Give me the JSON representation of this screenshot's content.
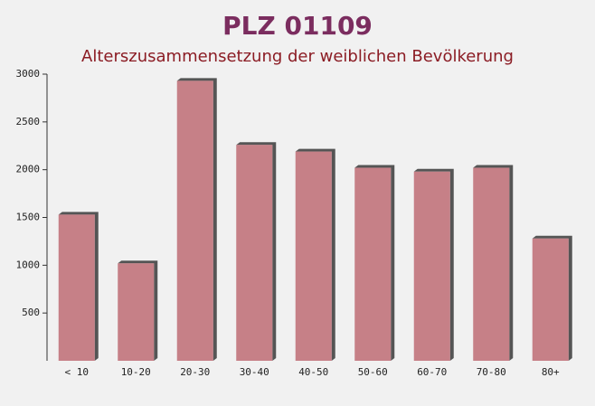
{
  "chart_data": {
    "type": "bar",
    "title": "PLZ 01109",
    "subtitle": "Alterszusammensetzung der weiblichen Bevölkerung",
    "categories": [
      "< 10",
      "10-20",
      "20-30",
      "30-40",
      "40-50",
      "50-60",
      "60-70",
      "70-80",
      "80+"
    ],
    "values": [
      1530,
      1020,
      2930,
      2260,
      2190,
      2020,
      1980,
      2020,
      1280
    ],
    "color": "#c1737b",
    "ylim": [
      0,
      3000
    ],
    "yticks": [
      500,
      1000,
      1500,
      2000,
      2500,
      3000
    ]
  }
}
